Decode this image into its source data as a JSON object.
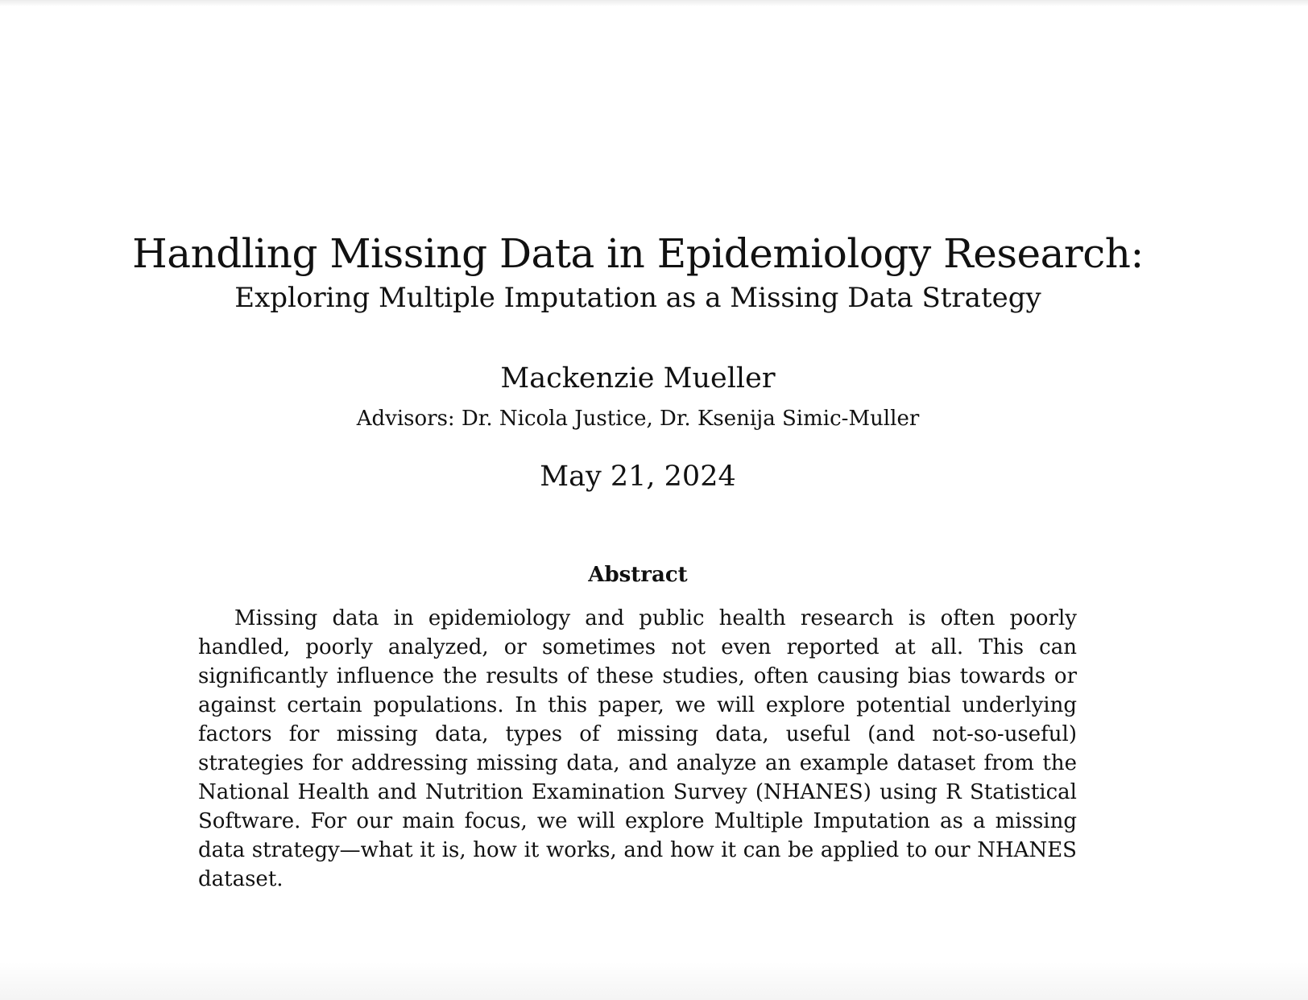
{
  "paper": {
    "title": "Handling Missing Data in Epidemiology Research:",
    "subtitle": "Exploring Multiple Imputation as a Missing Data Strategy",
    "author": "Mackenzie Mueller",
    "advisors": "Advisors: Dr. Nicola Justice, Dr. Ksenija Simic-Muller",
    "date": "May 21, 2024",
    "abstract_heading": "Abstract",
    "abstract_text": "Missing data in epidemiology and public health research is often poorly handled, poorly analyzed, or sometimes not even reported at all. This can significantly influence the results of these studies, often causing bias towards or against certain populations. In this paper, we will explore potential underlying factors for missing data, types of missing data, useful (and not-so-useful) strategies for addressing missing data, and an­alyze an example dataset from the National Health and Nutrition Examination Survey (NHANES) using R Statistical Software. For our main focus, we will explore Multiple Imputation as a missing data strategy—what it is, how it works, and how it can be applied to our NHANES dataset."
  }
}
